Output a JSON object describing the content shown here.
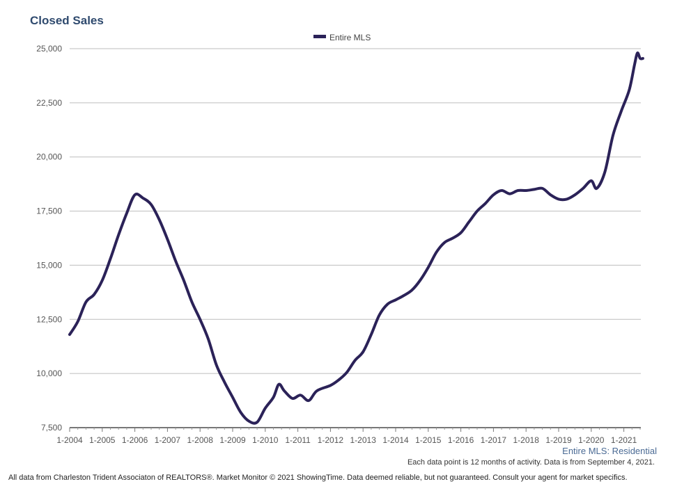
{
  "chart_data": {
    "type": "line",
    "title": "Closed Sales",
    "series_name": "Entire MLS",
    "legend_position": "top-center",
    "grid": true,
    "ylim": [
      7500,
      25000
    ],
    "y_ticks": [
      "25,000",
      "22,500",
      "20,000",
      "17,500",
      "15,000",
      "12,500",
      "10,000",
      "7,500"
    ],
    "y_tick_values": [
      25000,
      22500,
      20000,
      17500,
      15000,
      12500,
      10000,
      7500
    ],
    "x_ticks": [
      "1-2004",
      "1-2005",
      "1-2006",
      "1-2007",
      "1-2008",
      "1-2009",
      "1-2010",
      "1-2011",
      "1-2012",
      "1-2013",
      "1-2014",
      "1-2015",
      "1-2016",
      "1-2017",
      "1-2018",
      "1-2019",
      "1-2020",
      "1-2021"
    ],
    "xlim": [
      "2004-01",
      "2021-08"
    ],
    "series": [
      {
        "name": "Entire MLS",
        "color": "#2b2258",
        "points": [
          [
            "2004-01",
            11800
          ],
          [
            "2004-04",
            12400
          ],
          [
            "2004-07",
            13300
          ],
          [
            "2004-10",
            13650
          ],
          [
            "2005-01",
            14300
          ],
          [
            "2005-04",
            15300
          ],
          [
            "2005-07",
            16400
          ],
          [
            "2005-10",
            17400
          ],
          [
            "2006-01",
            18250
          ],
          [
            "2006-04",
            18100
          ],
          [
            "2006-07",
            17800
          ],
          [
            "2006-10",
            17100
          ],
          [
            "2007-01",
            16200
          ],
          [
            "2007-04",
            15200
          ],
          [
            "2007-07",
            14300
          ],
          [
            "2007-10",
            13300
          ],
          [
            "2008-01",
            12500
          ],
          [
            "2008-04",
            11600
          ],
          [
            "2008-07",
            10400
          ],
          [
            "2008-10",
            9600
          ],
          [
            "2009-01",
            8900
          ],
          [
            "2009-04",
            8200
          ],
          [
            "2009-07",
            7800
          ],
          [
            "2009-10",
            7750
          ],
          [
            "2010-01",
            8400
          ],
          [
            "2010-04",
            8900
          ],
          [
            "2010-06",
            9500
          ],
          [
            "2010-08",
            9200
          ],
          [
            "2010-11",
            8850
          ],
          [
            "2011-02",
            9000
          ],
          [
            "2011-05",
            8750
          ],
          [
            "2011-08",
            9200
          ],
          [
            "2012-01",
            9450
          ],
          [
            "2012-04",
            9700
          ],
          [
            "2012-07",
            10050
          ],
          [
            "2012-10",
            10600
          ],
          [
            "2013-01",
            11000
          ],
          [
            "2013-04",
            11800
          ],
          [
            "2013-07",
            12700
          ],
          [
            "2013-10",
            13200
          ],
          [
            "2014-01",
            13400
          ],
          [
            "2014-04",
            13600
          ],
          [
            "2014-07",
            13850
          ],
          [
            "2014-10",
            14300
          ],
          [
            "2015-01",
            14900
          ],
          [
            "2015-04",
            15600
          ],
          [
            "2015-07",
            16050
          ],
          [
            "2015-10",
            16250
          ],
          [
            "2016-01",
            16500
          ],
          [
            "2016-04",
            17000
          ],
          [
            "2016-07",
            17500
          ],
          [
            "2016-10",
            17850
          ],
          [
            "2017-01",
            18250
          ],
          [
            "2017-04",
            18450
          ],
          [
            "2017-07",
            18300
          ],
          [
            "2017-10",
            18450
          ],
          [
            "2018-01",
            18450
          ],
          [
            "2018-04",
            18500
          ],
          [
            "2018-07",
            18550
          ],
          [
            "2018-10",
            18250
          ],
          [
            "2019-01",
            18050
          ],
          [
            "2019-04",
            18050
          ],
          [
            "2019-07",
            18250
          ],
          [
            "2019-10",
            18550
          ],
          [
            "2020-01",
            18900
          ],
          [
            "2020-03",
            18550
          ],
          [
            "2020-06",
            19300
          ],
          [
            "2020-09",
            21000
          ],
          [
            "2020-12",
            22100
          ],
          [
            "2021-03",
            23100
          ],
          [
            "2021-05",
            24300
          ],
          [
            "2021-06",
            24800
          ],
          [
            "2021-07",
            24550
          ],
          [
            "2021-08",
            24550
          ]
        ]
      }
    ],
    "series_label": "Entire MLS: Residential",
    "note": "Each data point is 12 months of activity. Data is from September 4, 2021."
  },
  "footer": "All data from Charleston Trident Associaton of REALTORS®. Market Monitor © 2021 ShowingTime. Data deemed reliable, but not guaranteed. Consult your agent for market specifics."
}
